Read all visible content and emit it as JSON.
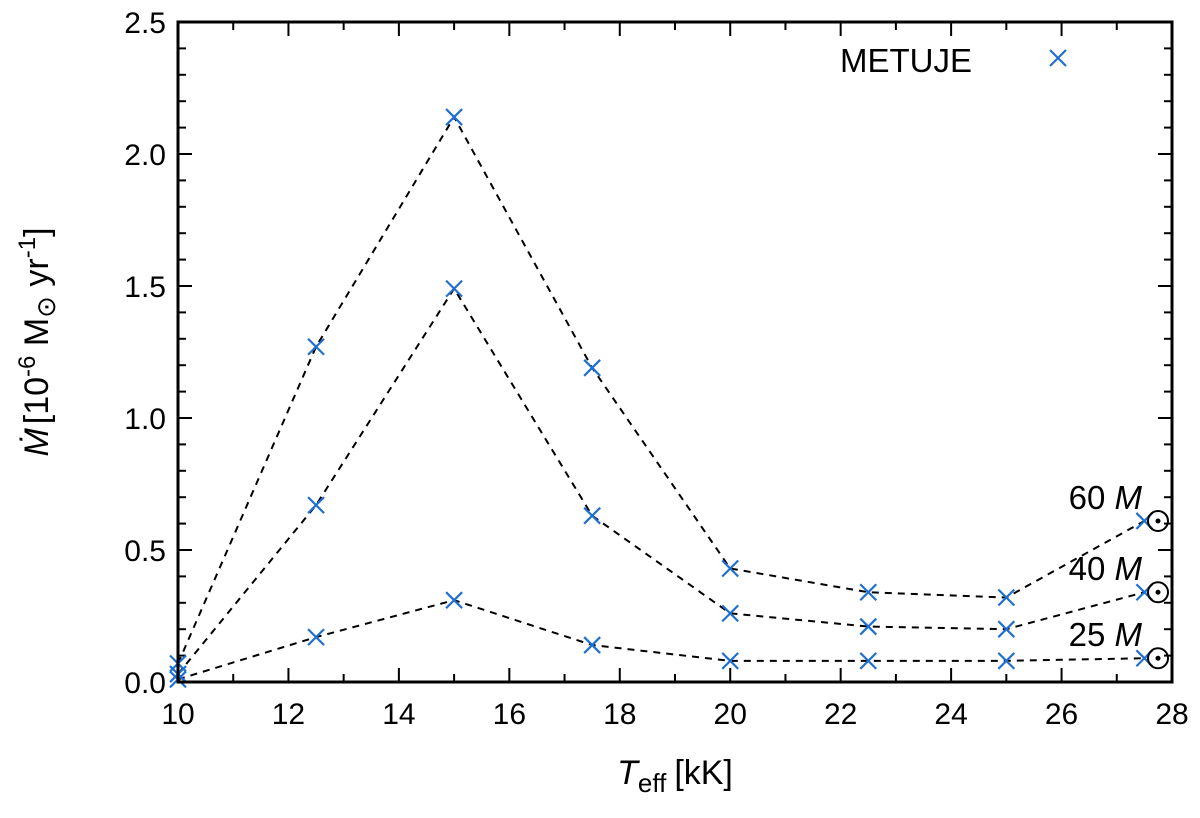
{
  "chart_data": {
    "type": "line",
    "x_label": {
      "symbol": "T",
      "subscript": "eff",
      "unit": "[kK]"
    },
    "y_label": {
      "symbol": "Ṁ",
      "unit_prefix": "[10",
      "exponent": "-6",
      "unit_mid": " M",
      "sun": "⊙",
      "unit_yr": " yr",
      "exponent2": "-1",
      "close": "]"
    },
    "xlim": [
      10,
      28
    ],
    "ylim": [
      0,
      2.5
    ],
    "x_ticks": [
      10,
      12,
      14,
      16,
      18,
      20,
      22,
      24,
      26,
      28
    ],
    "x_tick_labels": [
      "10",
      "12",
      "14",
      "16",
      "18",
      "20",
      "22",
      "24",
      "26",
      "28"
    ],
    "y_ticks": [
      0,
      0.5,
      1.0,
      1.5,
      2.0,
      2.5
    ],
    "y_tick_labels": [
      "0.0",
      "0.5",
      "1.0",
      "1.5",
      "2.0",
      "2.5"
    ],
    "legend": {
      "label": "METUJE",
      "placement": "top-right"
    },
    "marker_color": "#1f6fd1",
    "line_color": "#000000",
    "series": [
      {
        "name": "60 M⊙",
        "label_number": "60",
        "label_symbol": "M",
        "label_sun": "⊙",
        "x": [
          10,
          12.5,
          15,
          17.5,
          20,
          22.5,
          25,
          27.5
        ],
        "y": [
          0.07,
          1.27,
          2.14,
          1.19,
          0.43,
          0.34,
          0.32,
          0.61
        ]
      },
      {
        "name": "40 M⊙",
        "label_number": "40",
        "label_symbol": "M",
        "label_sun": "⊙",
        "x": [
          10,
          12.5,
          15,
          17.5,
          20,
          22.5,
          25,
          27.5
        ],
        "y": [
          0.03,
          0.67,
          1.49,
          0.63,
          0.26,
          0.21,
          0.2,
          0.34
        ]
      },
      {
        "name": "25 M⊙",
        "label_number": "25",
        "label_symbol": "M",
        "label_sun": "⊙",
        "x": [
          10,
          12.5,
          15,
          17.5,
          20,
          22.5,
          25,
          27.5
        ],
        "y": [
          0.01,
          0.17,
          0.31,
          0.14,
          0.08,
          0.08,
          0.08,
          0.09
        ]
      }
    ]
  }
}
